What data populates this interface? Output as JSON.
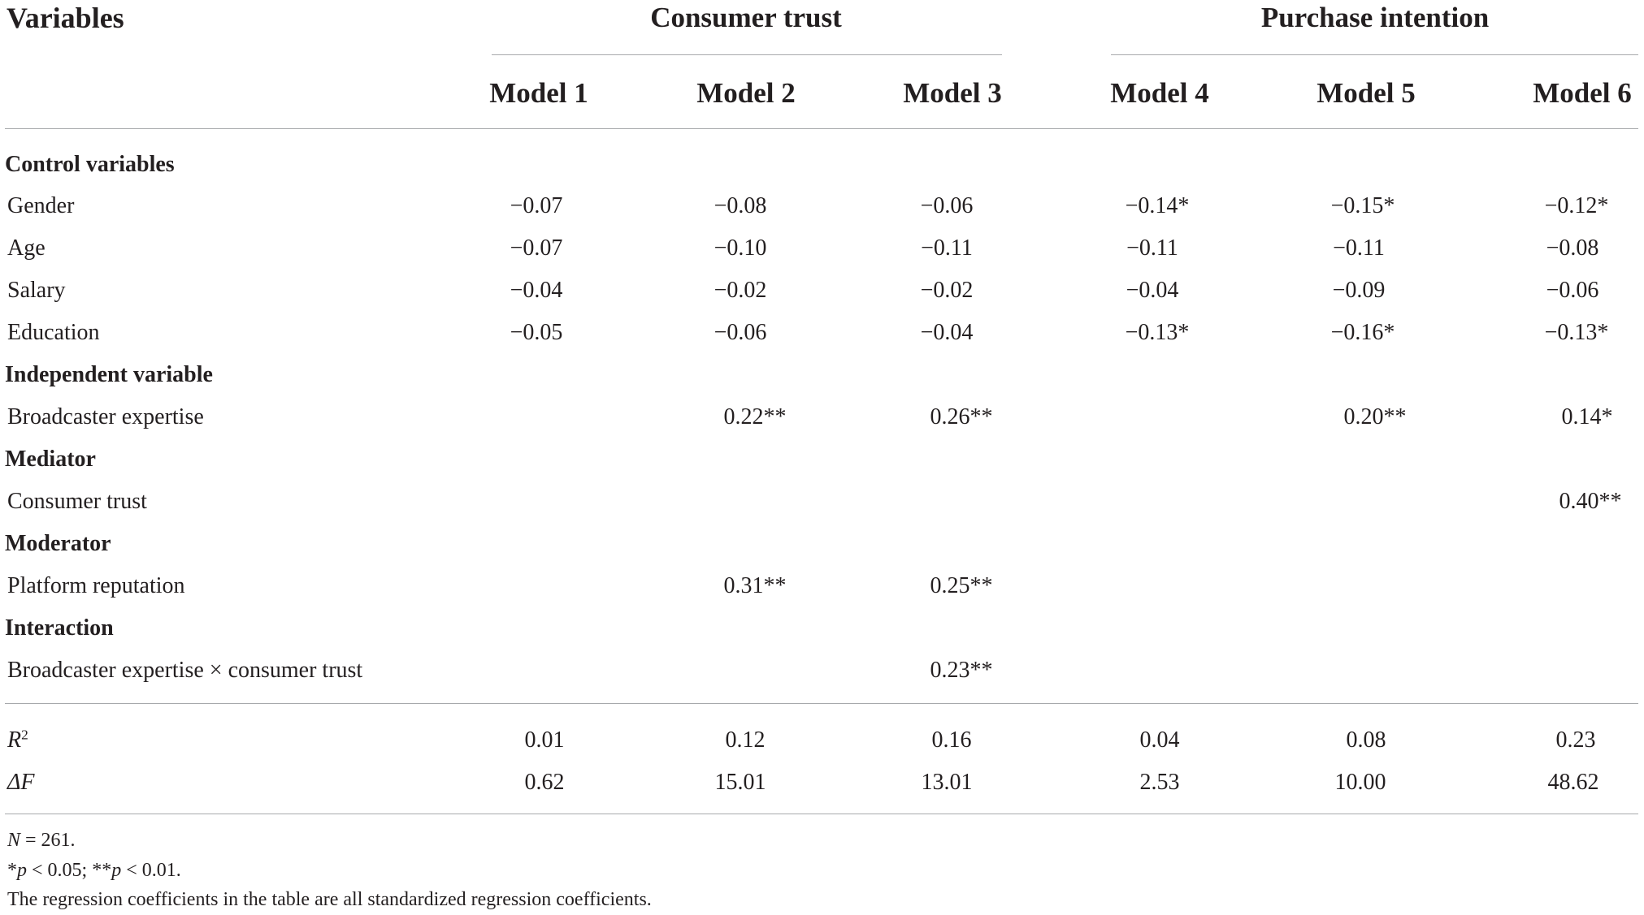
{
  "table": {
    "header": {
      "variables_label": "Variables",
      "groups": [
        {
          "label": "Consumer trust"
        },
        {
          "label": "Purchase intention"
        }
      ],
      "models": [
        "Model 1",
        "Model 2",
        "Model 3",
        "Model 4",
        "Model 5",
        "Model 6"
      ]
    },
    "sections": [
      {
        "title": "Control variables",
        "rows": [
          {
            "label": "Gender",
            "values": [
              "−0.07",
              "−0.08",
              "−0.06",
              "−0.14*",
              "−0.15*",
              "−0.12*"
            ]
          },
          {
            "label": "Age",
            "values": [
              "−0.07",
              "−0.10",
              "−0.11",
              "−0.11",
              "−0.11",
              "−0.08"
            ]
          },
          {
            "label": "Salary",
            "values": [
              "−0.04",
              "−0.02",
              "−0.02",
              "−0.04",
              "−0.09",
              "−0.06"
            ]
          },
          {
            "label": "Education",
            "values": [
              "−0.05",
              "−0.06",
              "−0.04",
              "−0.13*",
              "−0.16*",
              "−0.13*"
            ]
          }
        ]
      },
      {
        "title": "Independent variable",
        "rows": [
          {
            "label": "Broadcaster expertise",
            "values": [
              "",
              "0.22**",
              "0.26**",
              "",
              "0.20**",
              "0.14*"
            ]
          }
        ]
      },
      {
        "title": "Mediator",
        "rows": [
          {
            "label": "Consumer trust",
            "values": [
              "",
              "",
              "",
              "",
              "",
              "0.40**"
            ]
          }
        ]
      },
      {
        "title": "Moderator",
        "rows": [
          {
            "label": "Platform reputation",
            "values": [
              "",
              "0.31**",
              "0.25**",
              "",
              "",
              ""
            ]
          }
        ]
      },
      {
        "title": "Interaction",
        "rows": [
          {
            "label": "Broadcaster expertise × consumer trust",
            "values": [
              "",
              "",
              "0.23**",
              "",
              "",
              ""
            ]
          }
        ]
      }
    ],
    "stats": [
      {
        "label_main": "R",
        "label_sup": "2",
        "values": [
          "0.01",
          "0.12",
          "0.16",
          "0.04",
          "0.08",
          "0.23"
        ]
      },
      {
        "label_main": "ΔF",
        "label_sup": "",
        "values": [
          "0.62",
          "15.01",
          "13.01",
          "2.53",
          "10.00",
          "48.62"
        ]
      }
    ],
    "notes": {
      "n_var": "N",
      "n_rest": " = 261.",
      "p_star1": "*",
      "p_var1": "p",
      "p_text1": " < 0.05; **",
      "p_var2": "p",
      "p_text2": " < 0.01.",
      "coefficients": "The regression coefficients in the table are all standardized regression coefficients."
    },
    "colors": {
      "text": "#231f20",
      "rule": "#a7a9ac",
      "background": "#ffffff"
    }
  }
}
